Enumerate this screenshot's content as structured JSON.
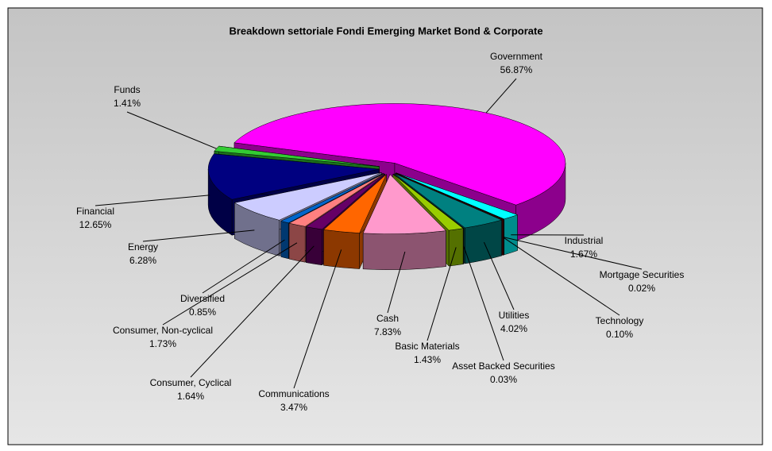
{
  "chart_data": {
    "type": "pie3d",
    "title": "Breakdown settoriale Fondi Emerging Market Bond & Corporate",
    "categories": [
      "Government",
      "Industrial",
      "Mortgage Securities",
      "Technology",
      "Utilities",
      "Asset Backed Securities",
      "Basic Materials",
      "Cash",
      "Communications",
      "Consumer, Cyclical",
      "Consumer, Non-cyclical",
      "Diversified",
      "Energy",
      "Financial",
      "Funds"
    ],
    "values": [
      56.87,
      1.67,
      0.02,
      0.1,
      4.02,
      0.03,
      1.43,
      7.83,
      3.47,
      1.64,
      1.73,
      0.85,
      6.28,
      12.65,
      1.41
    ],
    "value_labels": [
      "56.87%",
      "1.67%",
      "0.02%",
      "0.10%",
      "4.02%",
      "0.03%",
      "1.43%",
      "7.83%",
      "3.47%",
      "1.64%",
      "1.73%",
      "0.85%",
      "6.28%",
      "12.65%",
      "1.41%"
    ],
    "colors": [
      "#ff00ff",
      "#00ffff",
      "#660000",
      "#800000",
      "#008080",
      "#666699",
      "#99cc00",
      "#ff99cc",
      "#ff6600",
      "#660066",
      "#ff8080",
      "#0066cc",
      "#ccccff",
      "#000080",
      "#33cc33"
    ]
  }
}
